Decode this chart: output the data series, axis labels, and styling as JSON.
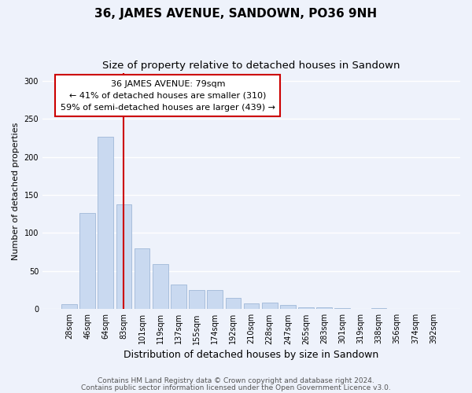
{
  "title": "36, JAMES AVENUE, SANDOWN, PO36 9NH",
  "subtitle": "Size of property relative to detached houses in Sandown",
  "xlabel": "Distribution of detached houses by size in Sandown",
  "ylabel": "Number of detached properties",
  "bar_labels": [
    "28sqm",
    "46sqm",
    "64sqm",
    "83sqm",
    "101sqm",
    "119sqm",
    "137sqm",
    "155sqm",
    "174sqm",
    "192sqm",
    "210sqm",
    "228sqm",
    "247sqm",
    "265sqm",
    "283sqm",
    "301sqm",
    "319sqm",
    "338sqm",
    "356sqm",
    "374sqm",
    "392sqm"
  ],
  "bar_values": [
    7,
    126,
    226,
    138,
    80,
    59,
    32,
    25,
    25,
    15,
    8,
    9,
    5,
    2,
    2,
    1,
    0,
    1,
    0,
    0,
    0
  ],
  "bar_color": "#c9d9f0",
  "bar_edge_color": "#a0b8d8",
  "vline_x": 3,
  "vline_color": "#cc0000",
  "annotation_title": "36 JAMES AVENUE: 79sqm",
  "annotation_line1": "← 41% of detached houses are smaller (310)",
  "annotation_line2": "59% of semi-detached houses are larger (439) →",
  "annotation_box_color": "#ffffff",
  "annotation_box_edge": "#cc0000",
  "ylim": [
    0,
    310
  ],
  "yticks": [
    0,
    50,
    100,
    150,
    200,
    250,
    300
  ],
  "footer1": "Contains HM Land Registry data © Crown copyright and database right 2024.",
  "footer2": "Contains public sector information licensed under the Open Government Licence v3.0.",
  "bg_color": "#eef2fb",
  "plot_bg_color": "#eef2fb",
  "grid_color": "#ffffff",
  "title_fontsize": 11,
  "subtitle_fontsize": 9.5,
  "xlabel_fontsize": 9,
  "ylabel_fontsize": 8,
  "tick_fontsize": 7,
  "footer_fontsize": 6.5,
  "annot_fontsize": 8
}
